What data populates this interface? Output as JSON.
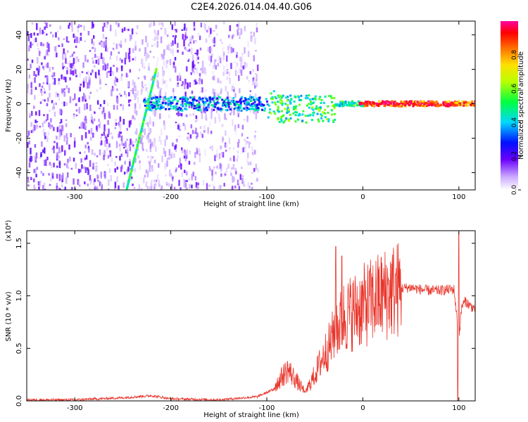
{
  "title": "C2E4.2026.014.04.40.G06",
  "colors": {
    "trace": "#e8342a",
    "axis": "#000000",
    "background": "#ffffff"
  },
  "chart_data": [
    {
      "type": "heatmap",
      "xlabel": "Height of straight line (km)",
      "ylabel": "Frequency (Hz)",
      "xlim": [
        -350,
        117
      ],
      "ylim": [
        -50,
        48
      ],
      "xticks": [
        -300,
        -200,
        -100,
        0,
        100
      ],
      "yticks": [
        -40,
        -20,
        0,
        20,
        40
      ],
      "colorbar": {
        "label": "Normalized spectral amplitude",
        "range": [
          0,
          1
        ],
        "ticks": [
          "0.0",
          "0.2",
          "0.4",
          "0.6",
          "0.8"
        ],
        "tick_values": [
          0.0,
          0.2,
          0.4,
          0.6,
          0.8
        ]
      },
      "features": [
        {
          "name": "steep line",
          "from": [
            -246,
            -50
          ],
          "to": [
            -215,
            20
          ],
          "amplitude": 0.5
        },
        {
          "name": "near-zero frequency band",
          "x_range": [
            -230,
            117
          ],
          "center_hz": 0,
          "amplitude_rising_to": 1.0
        }
      ]
    },
    {
      "type": "line",
      "xlabel": "Height of straight line (km)",
      "ylabel": "SNR (10 * v/v)",
      "scale_label": "(x10⁴)",
      "xlim": [
        -350,
        117
      ],
      "ylim": [
        0,
        1.62
      ],
      "xticks": [
        -300,
        -200,
        -100,
        0,
        100
      ],
      "yticks": [
        0.0,
        0.5,
        1.0,
        1.5
      ],
      "ytick_labels": [
        "0.0",
        "0.5",
        "1.0",
        "1.5"
      ],
      "series": [
        {
          "name": "SNR",
          "x": [
            -350,
            -300,
            -250,
            -220,
            -200,
            -150,
            -110,
            -95,
            -85,
            -78,
            -70,
            -60,
            -50,
            -40,
            -33,
            -28,
            -25,
            -20,
            -10,
            0,
            10,
            20,
            30,
            40,
            50,
            60,
            70,
            80,
            90,
            95,
            100,
            103,
            107,
            112,
            117
          ],
          "y": [
            0.01,
            0.01,
            0.03,
            0.05,
            0.02,
            0.01,
            0.04,
            0.1,
            0.22,
            0.3,
            0.2,
            0.08,
            0.25,
            0.45,
            0.55,
            0.75,
            0.7,
            0.8,
            0.85,
            0.9,
            0.95,
            1.0,
            1.05,
            1.07,
            1.08,
            1.06,
            1.05,
            1.05,
            1.06,
            1.06,
            0.6,
            0.9,
            0.95,
            0.9,
            0.88
          ]
        }
      ],
      "spikes": [
        {
          "x": -28,
          "y": 1.47
        },
        {
          "x": -22,
          "y": 1.38
        },
        {
          "x": 100,
          "y": 1.6
        },
        {
          "x": 99,
          "y": 0.0
        }
      ]
    }
  ]
}
